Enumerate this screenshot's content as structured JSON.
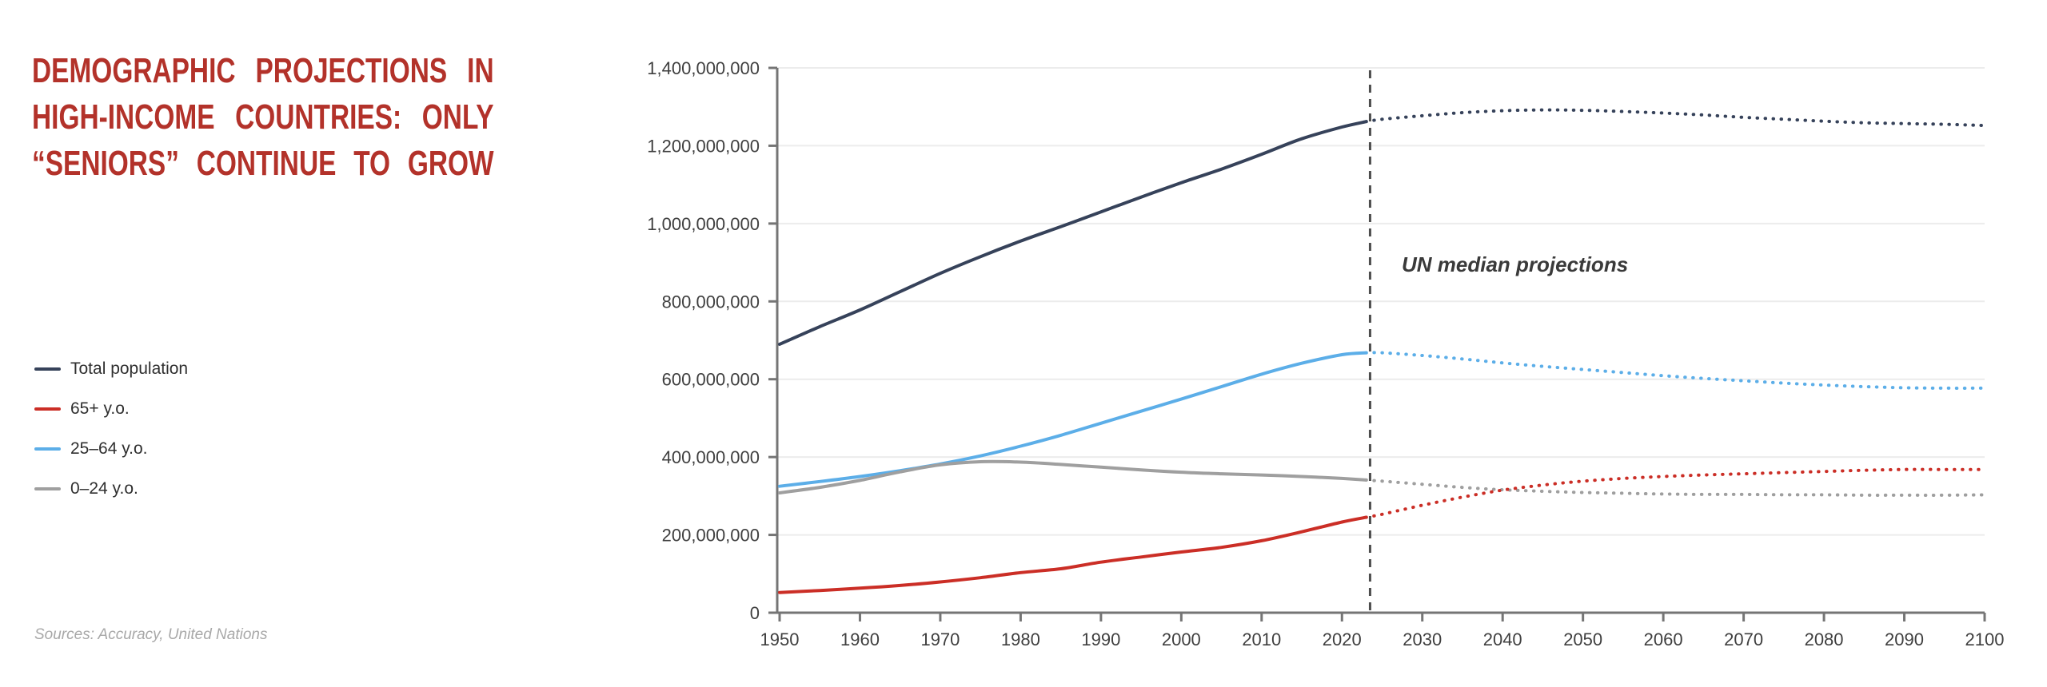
{
  "title": {
    "lines": [
      "DEMOGRAPHIC PROJECTIONS IN",
      "HIGH-INCOME COUNTRIES: ONLY",
      "“SENIORS” CONTINUE TO GROW"
    ],
    "color": "#b3322a"
  },
  "legend": {
    "items": [
      {
        "label": "Total population",
        "color": "#36425a"
      },
      {
        "label": "65+ y.o.",
        "color": "#cb2e26"
      },
      {
        "label": "25–64 y.o.",
        "color": "#5caee8"
      },
      {
        "label": "0–24 y.o.",
        "color": "#9f9f9f"
      }
    ]
  },
  "source_note": "Sources: Accuracy, United Nations",
  "chart_data": {
    "type": "line",
    "title": "",
    "annotation": "UN median projections",
    "projection_start_year": 2023,
    "units": "persons (y-axis shown in absolute numbers)",
    "x_axis": {
      "range": [
        1950,
        2100
      ],
      "tick_labels": [
        "1950",
        "1960",
        "1970",
        "1980",
        "1990",
        "2000",
        "2010",
        "2020",
        "2030",
        "2040",
        "2050",
        "2060",
        "2070",
        "2080",
        "2090",
        "2100"
      ],
      "tick_values": [
        1950,
        1960,
        1970,
        1980,
        1990,
        2000,
        2010,
        2020,
        2030,
        2040,
        2050,
        2060,
        2070,
        2080,
        2090,
        2100
      ]
    },
    "y_axis": {
      "range_millions": [
        0,
        1400
      ],
      "tick_values_millions": [
        0,
        200,
        400,
        600,
        800,
        1000,
        1200,
        1400
      ],
      "tick_labels": [
        "0",
        "200,000,000",
        "400,000,000",
        "600,000,000",
        "800,000,000",
        "1,000,000,000",
        "1,200,000,000",
        "1,400,000,000"
      ],
      "grid": true
    },
    "years_historical": [
      1950,
      1955,
      1960,
      1965,
      1970,
      1975,
      1980,
      1985,
      1990,
      1995,
      2000,
      2005,
      2010,
      2015,
      2020,
      2023
    ],
    "years_projection": [
      2023,
      2025,
      2030,
      2035,
      2040,
      2045,
      2050,
      2055,
      2060,
      2065,
      2070,
      2075,
      2080,
      2085,
      2090,
      2095,
      2100
    ],
    "series": [
      {
        "name": "Total population",
        "color": "#36425a",
        "historical_millions": [
          690,
          735,
          778,
          825,
          872,
          915,
          955,
          992,
          1030,
          1068,
          1105,
          1140,
          1178,
          1218,
          1248,
          1262
        ],
        "projection_millions": [
          1262,
          1268,
          1277,
          1285,
          1290,
          1292,
          1291,
          1288,
          1284,
          1279,
          1273,
          1268,
          1263,
          1259,
          1257,
          1255,
          1252
        ]
      },
      {
        "name": "25–64 y.o.",
        "color": "#5caee8",
        "historical_millions": [
          325,
          337,
          350,
          365,
          382,
          403,
          428,
          456,
          487,
          518,
          549,
          581,
          613,
          641,
          663,
          668
        ],
        "projection_millions": [
          668,
          668,
          661,
          652,
          642,
          633,
          625,
          617,
          609,
          602,
          596,
          590,
          585,
          581,
          578,
          577,
          577
        ]
      },
      {
        "name": "0–24 y.o.",
        "color": "#9f9f9f",
        "historical_millions": [
          308,
          322,
          340,
          362,
          380,
          388,
          387,
          381,
          374,
          367,
          361,
          357,
          354,
          350,
          345,
          341
        ],
        "projection_millions": [
          341,
          338,
          330,
          322,
          316,
          312,
          309,
          307,
          305,
          304,
          304,
          303,
          303,
          302,
          302,
          302,
          303
        ]
      },
      {
        "name": "65+ y.o.",
        "color": "#cb2e26",
        "historical_millions": [
          52,
          57,
          63,
          70,
          79,
          90,
          103,
          113,
          130,
          143,
          156,
          168,
          185,
          208,
          233,
          245
        ],
        "projection_millions": [
          245,
          253,
          276,
          297,
          315,
          328,
          338,
          345,
          350,
          354,
          357,
          360,
          363,
          366,
          368,
          368,
          368
        ]
      }
    ],
    "legend_position": "left",
    "style": {
      "axis_color": "#757575",
      "gridline_color": "#ececec",
      "tick_label_color": "#3f3f3f",
      "divider_color": "#4d4d4d",
      "annotation_color": "#3a3a3a"
    }
  }
}
